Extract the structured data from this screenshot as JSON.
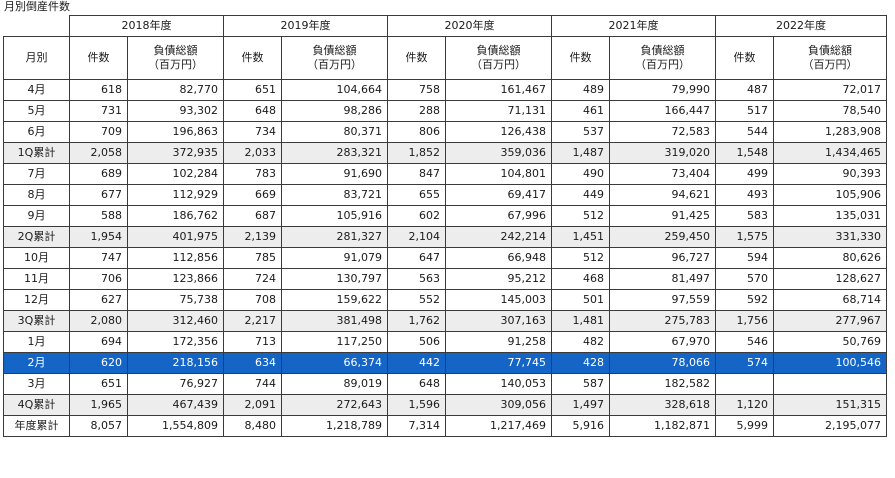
{
  "title": "月別倒産件数",
  "years": [
    "2018年度",
    "2019年度",
    "2020年度",
    "2021年度",
    "2022年度"
  ],
  "row_header": "月別",
  "col_count": "件数",
  "col_debt_line1": "負債総額",
  "col_debt_line2": "（百万円）",
  "rows": [
    {
      "label": "4月",
      "type": "month",
      "cells": [
        "618",
        "82,770",
        "651",
        "104,664",
        "758",
        "161,467",
        "489",
        "79,990",
        "487",
        "72,017"
      ]
    },
    {
      "label": "5月",
      "type": "month",
      "cells": [
        "731",
        "93,302",
        "648",
        "98,286",
        "288",
        "71,131",
        "461",
        "166,447",
        "517",
        "78,540"
      ]
    },
    {
      "label": "6月",
      "type": "month",
      "cells": [
        "709",
        "196,863",
        "734",
        "80,371",
        "806",
        "126,438",
        "537",
        "72,583",
        "544",
        "1,283,908"
      ]
    },
    {
      "label": "1Q累計",
      "type": "total",
      "cells": [
        "2,058",
        "372,935",
        "2,033",
        "283,321",
        "1,852",
        "359,036",
        "1,487",
        "319,020",
        "1,548",
        "1,434,465"
      ]
    },
    {
      "label": "7月",
      "type": "month",
      "cells": [
        "689",
        "102,284",
        "783",
        "91,690",
        "847",
        "104,801",
        "490",
        "73,404",
        "499",
        "90,393"
      ]
    },
    {
      "label": "8月",
      "type": "month",
      "cells": [
        "677",
        "112,929",
        "669",
        "83,721",
        "655",
        "69,417",
        "449",
        "94,621",
        "493",
        "105,906"
      ]
    },
    {
      "label": "9月",
      "type": "month",
      "cells": [
        "588",
        "186,762",
        "687",
        "105,916",
        "602",
        "67,996",
        "512",
        "91,425",
        "583",
        "135,031"
      ]
    },
    {
      "label": "2Q累計",
      "type": "total",
      "cells": [
        "1,954",
        "401,975",
        "2,139",
        "281,327",
        "2,104",
        "242,214",
        "1,451",
        "259,450",
        "1,575",
        "331,330"
      ]
    },
    {
      "label": "10月",
      "type": "month",
      "cells": [
        "747",
        "112,856",
        "785",
        "91,079",
        "647",
        "66,948",
        "512",
        "96,727",
        "594",
        "80,626"
      ]
    },
    {
      "label": "11月",
      "type": "month",
      "cells": [
        "706",
        "123,866",
        "724",
        "130,797",
        "563",
        "95,212",
        "468",
        "81,497",
        "570",
        "128,627"
      ]
    },
    {
      "label": "12月",
      "type": "month",
      "cells": [
        "627",
        "75,738",
        "708",
        "159,622",
        "552",
        "145,003",
        "501",
        "97,559",
        "592",
        "68,714"
      ]
    },
    {
      "label": "3Q累計",
      "type": "total",
      "cells": [
        "2,080",
        "312,460",
        "2,217",
        "381,498",
        "1,762",
        "307,163",
        "1,481",
        "275,783",
        "1,756",
        "277,967"
      ]
    },
    {
      "label": "1月",
      "type": "month",
      "cells": [
        "694",
        "172,356",
        "713",
        "117,250",
        "506",
        "91,258",
        "482",
        "67,970",
        "546",
        "50,769"
      ]
    },
    {
      "label": "2月",
      "type": "highlight",
      "cells": [
        "620",
        "218,156",
        "634",
        "66,374",
        "442",
        "77,745",
        "428",
        "78,066",
        "574",
        "100,546"
      ]
    },
    {
      "label": "3月",
      "type": "month",
      "cells": [
        "651",
        "76,927",
        "744",
        "89,019",
        "648",
        "140,053",
        "587",
        "182,582",
        "",
        ""
      ]
    },
    {
      "label": "4Q累計",
      "type": "total",
      "cells": [
        "1,965",
        "467,439",
        "2,091",
        "272,643",
        "1,596",
        "309,056",
        "1,497",
        "328,618",
        "1,120",
        "151,315"
      ]
    },
    {
      "label": "年度累計",
      "type": "month",
      "cells": [
        "8,057",
        "1,554,809",
        "8,480",
        "1,218,789",
        "7,314",
        "1,217,469",
        "5,916",
        "1,182,871",
        "5,999",
        "2,195,077"
      ]
    }
  ],
  "colors": {
    "highlight_bg": "#1565c7",
    "total_bg": "#ededed",
    "border": "#3a3a3a"
  }
}
